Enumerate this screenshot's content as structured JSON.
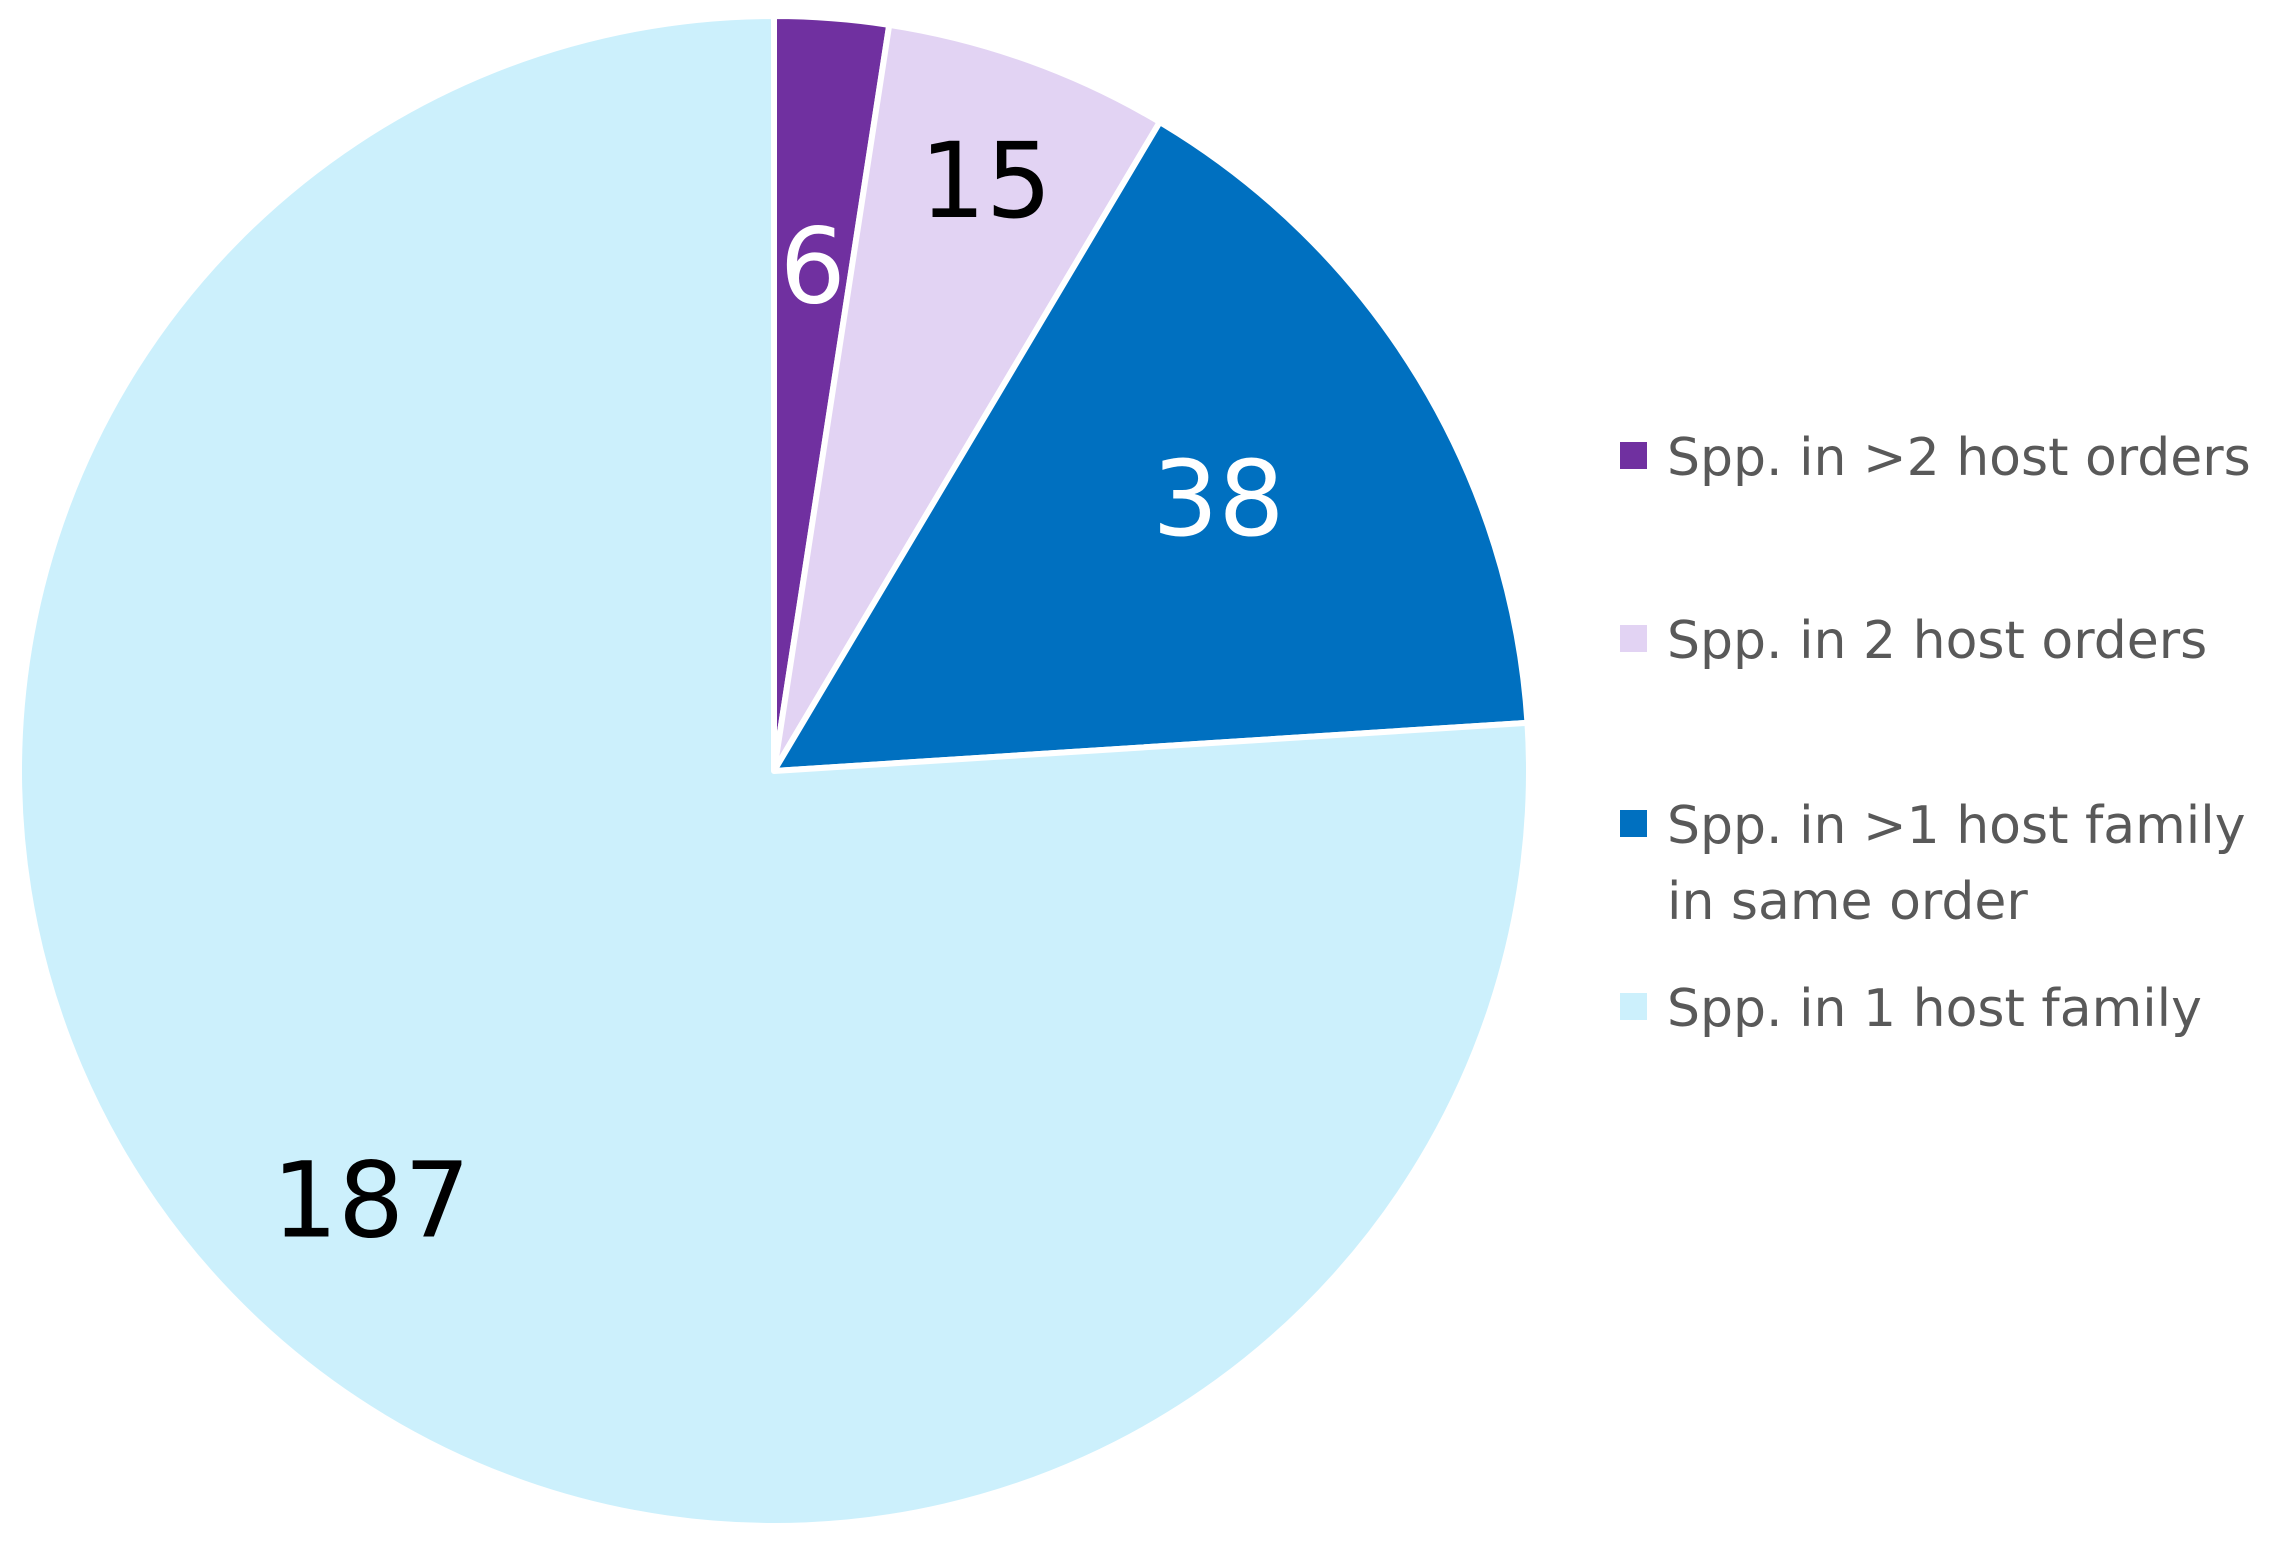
{
  "chart_data": {
    "type": "pie",
    "title": "",
    "start_angle_deg": 0,
    "direction": "clockwise",
    "legend_position": "right",
    "slices": [
      {
        "label": "Spp. in >2 host orders",
        "value": 6,
        "color": "#7030A0",
        "label_color": "#FFFFFF"
      },
      {
        "label": "Spp. in 2 host orders",
        "value": 15,
        "color": "#E2D3F3",
        "label_color": "#000000"
      },
      {
        "label": "Spp. in >1 host family in same order",
        "value": 38,
        "color": "#0070C0",
        "label_color": "#FFFFFF"
      },
      {
        "label": "Spp. in 1 host family",
        "value": 187,
        "color": "#CCF0FC",
        "label_color": "#000000"
      }
    ]
  },
  "legend": {
    "items": [
      {
        "label": "Spp. in >2 host orders",
        "color": "#7030A0"
      },
      {
        "label": "Spp. in 2 host orders",
        "color": "#E2D3F3"
      },
      {
        "label": "Spp. in >1 host family in same order",
        "color": "#0070C0"
      },
      {
        "label": "Spp. in 1 host family",
        "color": "#CCF0FC"
      }
    ]
  }
}
